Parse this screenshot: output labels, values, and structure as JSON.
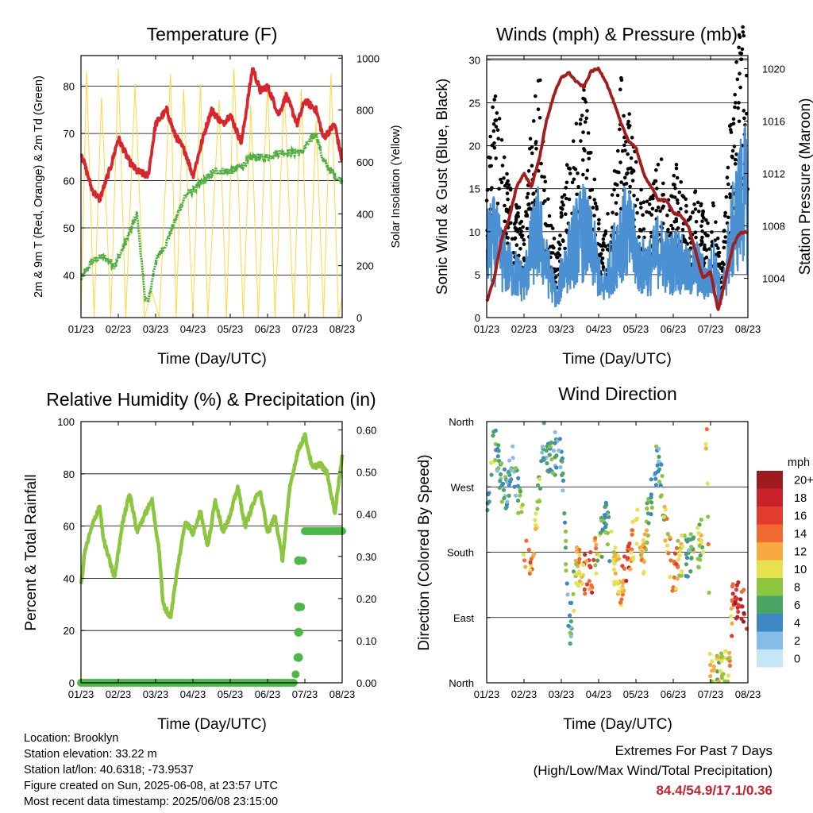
{
  "charts": {
    "temp": {
      "title": "Temperature (F)",
      "ylabel_left": "2m & 9m T (Red, Orange) & 2m Td (Green)",
      "ylabel_right": "Solar Insolation (Yellow)",
      "xlabel": "Time (Day/UTC)"
    },
    "wind": {
      "title": "Winds (mph) & Pressure (mb)",
      "ylabel_left": "Sonic Wind & Gust (Blue, Black)",
      "ylabel_right": "Station Pressure (Maroon)",
      "xlabel": "Time (Day/UTC)"
    },
    "rh": {
      "title": "Relative Humidity (%) & Precipitation (in)",
      "ylabel_left": "Percent & Total Rainfall",
      "xlabel": "Time (Day/UTC)"
    },
    "wdir": {
      "title": "Wind Direction",
      "ylabel_left": "Direction (Colored By Speed)",
      "xlabel": "Time (Day/UTC)",
      "legend_title": "mph"
    }
  },
  "info": {
    "location": "Location: Brooklyn",
    "elevation": "Station elevation: 33.22 m",
    "latlon": "Station lat/lon: 40.6318; -73.9537",
    "created": "Figure created on Sun, 2025-06-08, at 23:57 UTC",
    "recent": "Most recent data timestamp: 2025/06/08 23:15:00"
  },
  "extremes": {
    "line1": "Extremes For Past 7 Days",
    "line2": "(High/Low/Max Wind/Total Precipitation)",
    "values": "84.4/54.9/17.1/0.36"
  },
  "colors": {
    "temp": "#d7262d",
    "dewpoint": "#4caf3f",
    "solar": "#ffd640",
    "gust": "#000000",
    "wind": "#4a90d2",
    "pressure": "#a51c1c",
    "rh": "#8cc63f",
    "precip": "#4cb848"
  },
  "chart_data": [
    {
      "type": "line",
      "title": "Temperature (F)",
      "xlabel": "Time (Day/UTC)",
      "x_ticks": [
        "01/23",
        "02/23",
        "03/23",
        "04/23",
        "05/23",
        "06/23",
        "07/23",
        "08/23"
      ],
      "y_ticks": [
        40,
        50,
        60,
        70,
        80
      ],
      "ylim": [
        31,
        86.5
      ],
      "y2_ticks": [
        0,
        200,
        400,
        600,
        800,
        1000
      ],
      "y2lim": [
        0,
        1010
      ],
      "series": [
        {
          "name": "2m & 9m T (Red, Orange)",
          "axis": "left",
          "color": "#d7262d",
          "x": [
            0,
            0.3,
            0.5,
            0.8,
            1.0,
            1.3,
            1.5,
            1.8,
            2.0,
            2.3,
            2.5,
            2.8,
            3.0,
            3.3,
            3.5,
            3.8,
            4.0,
            4.3,
            4.6,
            4.8,
            5.0,
            5.3,
            5.5,
            5.8,
            6.0,
            6.3,
            6.5,
            6.8,
            7.0
          ],
          "y": [
            66,
            58,
            56,
            63,
            69,
            64,
            62,
            61,
            72,
            75,
            70,
            66,
            61,
            70,
            75,
            72,
            74,
            68,
            84,
            79,
            80,
            74,
            78,
            72,
            77,
            75,
            69,
            72,
            64
          ]
        },
        {
          "name": "2m Td (Green)",
          "axis": "left",
          "color": "#4caf3f",
          "x": [
            0,
            0.3,
            0.6,
            0.9,
            1.2,
            1.5,
            1.6,
            1.7,
            1.8,
            2.0,
            2.3,
            2.5,
            2.8,
            3.0,
            3.3,
            3.6,
            4.0,
            4.3,
            4.6,
            5.0,
            5.3,
            5.6,
            5.9,
            6.1,
            6.3,
            6.5,
            6.8,
            7.0
          ],
          "y": [
            39,
            43,
            44,
            42,
            47,
            53,
            45,
            36,
            34,
            43,
            47,
            51,
            57,
            58,
            60,
            62,
            62,
            63,
            65,
            65,
            66,
            66,
            66,
            68,
            70,
            64,
            61,
            60
          ]
        },
        {
          "name": "Solar Insolation (Yellow)",
          "axis": "right",
          "color": "#ffd640",
          "x": [
            0,
            0.15,
            0.35,
            0.55,
            0.8,
            1.0,
            1.2,
            1.45,
            1.7,
            1.9,
            2.1,
            2.4,
            2.55,
            2.75,
            3.0,
            3.2,
            3.4,
            3.7,
            3.9,
            4.1,
            4.35,
            4.55,
            4.75,
            5.0,
            5.2,
            5.45,
            5.7,
            5.9,
            6.1,
            6.3,
            6.5,
            6.7,
            6.9,
            7.0
          ],
          "y": [
            0,
            950,
            0,
            850,
            0,
            960,
            0,
            900,
            0,
            100,
            0,
            940,
            0,
            880,
            0,
            900,
            0,
            840,
            0,
            960,
            0,
            820,
            0,
            900,
            0,
            880,
            0,
            880,
            0,
            760,
            0,
            940,
            0,
            80
          ]
        }
      ]
    },
    {
      "type": "scatter",
      "title": "Winds (mph) & Pressure (mb)",
      "xlabel": "Time (Day/UTC)",
      "x_ticks": [
        "01/23",
        "02/23",
        "03/23",
        "04/23",
        "05/23",
        "06/23",
        "07/23",
        "08/23"
      ],
      "y_ticks": [
        0,
        5,
        10,
        15,
        20,
        25,
        30
      ],
      "ylim": [
        0,
        30.5
      ],
      "y2_ticks": [
        1004,
        1008,
        1012,
        1016,
        1020
      ],
      "y2lim": [
        1001,
        1021
      ],
      "series": [
        {
          "name": "Gust (Black)",
          "color": "#000000",
          "x": [
            0,
            0.2,
            0.5,
            0.8,
            1.0,
            1.2,
            1.4,
            1.6,
            1.9,
            2.0,
            2.2,
            2.4,
            2.6,
            2.9,
            3.1,
            3.4,
            3.6,
            3.9,
            4.1,
            4.4,
            4.6,
            4.9,
            5.1,
            5.4,
            5.6,
            5.9,
            6.1,
            6.3,
            6.5,
            6.7,
            6.9,
            7.0
          ],
          "y": [
            14,
            20,
            13,
            10,
            8,
            16,
            22,
            11,
            5,
            10,
            14,
            17,
            20,
            12,
            6,
            12,
            20,
            16,
            11,
            10,
            14,
            11,
            13,
            9,
            11,
            8,
            10,
            4,
            16,
            22,
            27,
            20
          ]
        },
        {
          "name": "Sonic Wind (Blue)",
          "color": "#4a90d2",
          "x": [
            0,
            0.2,
            0.5,
            0.8,
            1.0,
            1.2,
            1.4,
            1.6,
            1.9,
            2.0,
            2.2,
            2.4,
            2.6,
            2.9,
            3.1,
            3.4,
            3.6,
            3.9,
            4.1,
            4.4,
            4.6,
            4.9,
            5.1,
            5.4,
            5.6,
            5.9,
            6.1,
            6.3,
            6.5,
            6.7,
            6.9,
            7.0
          ],
          "y": [
            8,
            9,
            6,
            5,
            4,
            8,
            10,
            6,
            2,
            5,
            7,
            9,
            10,
            7,
            3,
            7,
            10,
            9,
            6,
            6,
            8,
            6,
            7,
            5,
            6,
            4,
            6,
            2,
            8,
            12,
            15,
            12
          ]
        },
        {
          "name": "Station Pressure (Maroon)",
          "axis": "right",
          "color": "#a51c1c",
          "x": [
            0,
            0.2,
            0.4,
            0.6,
            0.8,
            1.0,
            1.2,
            1.4,
            1.6,
            1.8,
            2.0,
            2.2,
            2.4,
            2.6,
            2.8,
            3.0,
            3.2,
            3.4,
            3.6,
            3.8,
            4.0,
            4.2,
            4.4,
            4.6,
            4.8,
            5.0,
            5.2,
            5.4,
            5.6,
            5.8,
            6.0,
            6.2,
            6.4,
            6.6,
            6.8,
            7.0
          ],
          "y": [
            1002.2,
            1004,
            1007,
            1008.5,
            1011,
            1012,
            1011,
            1013,
            1016,
            1018,
            1019.3,
            1019.7,
            1019,
            1018.6,
            1019.8,
            1020,
            1019,
            1017.5,
            1015.8,
            1014.5,
            1014,
            1012,
            1011,
            1010,
            1010,
            1009,
            1008.8,
            1008,
            1006,
            1004,
            1004.5,
            1001.5,
            1004,
            1006.5,
            1007.5,
            1007.5
          ]
        }
      ]
    },
    {
      "type": "line",
      "title": "Relative Humidity (%) & Precipitation (in)",
      "xlabel": "Time (Day/UTC)",
      "x_ticks": [
        "01/23",
        "02/23",
        "03/23",
        "04/23",
        "05/23",
        "06/23",
        "07/23",
        "08/23"
      ],
      "y_ticks": [
        0,
        20,
        40,
        60,
        80,
        100
      ],
      "ylim": [
        0,
        100
      ],
      "y2_ticks": [
        "0.00",
        "0.10",
        "0.20",
        "0.30",
        "0.40",
        "0.50",
        "0.60"
      ],
      "y2lim": [
        0,
        0.62
      ],
      "series": [
        {
          "name": "Relative Humidity",
          "axis": "left",
          "color": "#8cc63f",
          "x": [
            0,
            0.1,
            0.3,
            0.5,
            0.6,
            0.8,
            0.9,
            1.1,
            1.3,
            1.5,
            1.7,
            1.9,
            2.1,
            2.2,
            2.4,
            2.6,
            2.8,
            3.0,
            3.2,
            3.4,
            3.6,
            3.8,
            4.0,
            4.2,
            4.4,
            4.6,
            4.8,
            5.0,
            5.2,
            5.4,
            5.6,
            5.8,
            6.0,
            6.2,
            6.4,
            6.6,
            6.8,
            7.0
          ],
          "y": [
            37,
            50,
            60,
            68,
            55,
            45,
            40,
            60,
            73,
            58,
            64,
            70,
            50,
            30,
            25,
            45,
            62,
            57,
            66,
            52,
            70,
            58,
            64,
            75,
            60,
            68,
            74,
            57,
            64,
            47,
            75,
            88,
            95,
            82,
            84,
            80,
            65,
            87
          ]
        },
        {
          "name": "Total Rainfall",
          "axis": "right",
          "color": "#4cb848",
          "x": [
            0,
            5.7,
            5.75,
            5.8,
            5.85,
            5.9,
            5.95,
            6.0,
            7.0
          ],
          "y": [
            0,
            0,
            0.02,
            0.06,
            0.12,
            0.18,
            0.29,
            0.36,
            0.36
          ]
        }
      ]
    },
    {
      "type": "scatter",
      "title": "Wind Direction",
      "xlabel": "Time (Day/UTC)",
      "x_ticks": [
        "01/23",
        "02/23",
        "03/23",
        "04/23",
        "05/23",
        "06/23",
        "07/23",
        "08/23"
      ],
      "y_ticks": [
        "North",
        "East",
        "South",
        "West",
        "North"
      ],
      "y_tick_degrees": [
        0,
        90,
        180,
        270,
        360
      ],
      "legend_title": "mph",
      "colorbar": [
        {
          "label": "20+",
          "color": "#9e1b1f"
        },
        {
          "label": "18",
          "color": "#c8232c"
        },
        {
          "label": "16",
          "color": "#e13c2c"
        },
        {
          "label": "14",
          "color": "#f26a31"
        },
        {
          "label": "12",
          "color": "#f8a940"
        },
        {
          "label": "10",
          "color": "#e6e14e"
        },
        {
          "label": "8",
          "color": "#8cc63f"
        },
        {
          "label": "6",
          "color": "#4aa564"
        },
        {
          "label": "4",
          "color": "#3d87c7"
        },
        {
          "label": "2",
          "color": "#85bde8"
        },
        {
          "label": "0",
          "color": "#c6e6f8"
        }
      ],
      "series": [
        {
          "name": "Direction",
          "x": [
            0.05,
            0.2,
            0.3,
            0.5,
            0.7,
            0.9,
            1.1,
            1.3,
            1.45,
            1.5,
            1.7,
            1.8,
            1.9,
            2.0,
            2.1,
            2.2,
            2.4,
            2.6,
            2.8,
            3.0,
            3.2,
            3.4,
            3.6,
            3.8,
            4.0,
            4.2,
            4.4,
            4.6,
            4.8,
            5.0,
            5.2,
            5.4,
            5.6,
            5.8,
            5.9,
            6.0,
            6.2,
            6.4,
            6.5,
            6.6,
            6.8,
            7.0
          ],
          "y": [
            240,
            330,
            300,
            260,
            300,
            240,
            160,
            200,
            290,
            340,
            310,
            310,
            330,
            320,
            210,
            60,
            160,
            150,
            150,
            190,
            220,
            170,
            130,
            160,
            220,
            175,
            260,
            320,
            210,
            150,
            175,
            175,
            180,
            200,
            350,
            10,
            15,
            20,
            30,
            120,
            110,
            100
          ],
          "speed": [
            6,
            8,
            4,
            5,
            4,
            8,
            14,
            12,
            6,
            4,
            6,
            4,
            4,
            4,
            8,
            3,
            10,
            14,
            16,
            8,
            6,
            10,
            12,
            16,
            8,
            12,
            6,
            4,
            10,
            14,
            10,
            4,
            10,
            8,
            12,
            10,
            8,
            12,
            10,
            16,
            18,
            14
          ]
        }
      ]
    }
  ]
}
